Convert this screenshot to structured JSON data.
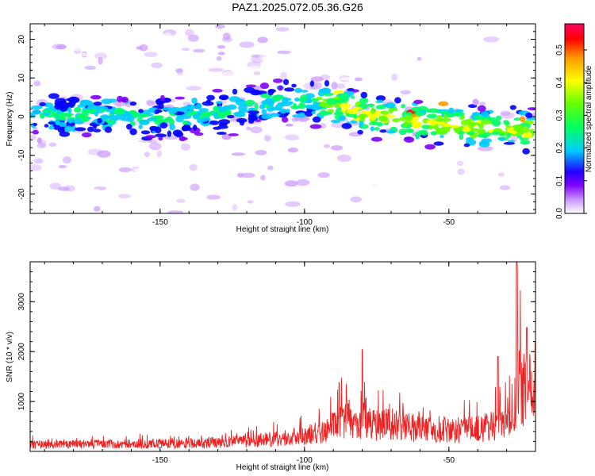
{
  "title": "PAZ1.2025.072.05.36.G26",
  "chart_data": [
    {
      "type": "heatmap",
      "xlabel": "Height of straight line (km)",
      "ylabel": "Frequency (Hz)",
      "xlim": [
        -195,
        -20
      ],
      "ylim": [
        -25,
        24
      ],
      "xticks": [
        -150,
        -100,
        -50
      ],
      "yticks": [
        -20,
        -10,
        0,
        10,
        20
      ],
      "ridge": {
        "description_points_x": [
          -195,
          -170,
          -150,
          -130,
          -110,
          -95,
          -80,
          -65,
          -50,
          -35,
          -20
        ],
        "description_points_y": [
          0,
          1,
          -1,
          1,
          4,
          4,
          1,
          -1,
          -2,
          -3,
          -4
        ]
      },
      "colorbar": {
        "label": "Normalized spectral amplitude",
        "ticks": [
          0.0,
          0.1,
          0.2,
          0.3,
          0.4,
          0.5
        ],
        "range": [
          0,
          0.58
        ],
        "colors": [
          "#ffffff",
          "#cc99ff",
          "#7f00ff",
          "#0000ff",
          "#00ccff",
          "#00ff66",
          "#66ff00",
          "#ffff00",
          "#ff9900",
          "#ff0000",
          "#ff0066"
        ]
      }
    },
    {
      "type": "line",
      "xlabel": "Height of straight line (km)",
      "ylabel": "SNR (10 * v/v)",
      "xlim": [
        -195,
        -20
      ],
      "ylim": [
        0,
        3800
      ],
      "xticks": [
        -150,
        -100,
        -50
      ],
      "yticks": [
        1000,
        2000,
        3000
      ],
      "color": "#ee2222",
      "profile_x": [
        -195,
        -180,
        -160,
        -140,
        -120,
        -105,
        -95,
        -88,
        -85,
        -82,
        -79,
        -75,
        -70,
        -65,
        -60,
        -55,
        -50,
        -45,
        -40,
        -35,
        -30,
        -27,
        -26,
        -25,
        -22,
        -20
      ],
      "profile_y": [
        150,
        160,
        170,
        180,
        220,
        320,
        420,
        650,
        760,
        520,
        780,
        600,
        620,
        560,
        520,
        500,
        480,
        470,
        500,
        560,
        700,
        1100,
        2200,
        1400,
        1350,
        1200
      ],
      "spikes": [
        {
          "x": -26.5,
          "y": 3800
        },
        {
          "x": -88,
          "y": 1380
        },
        {
          "x": -80,
          "y": 2040
        },
        {
          "x": -20,
          "y": 2200
        },
        {
          "x": -33,
          "y": 1900
        },
        {
          "x": -23,
          "y": 2480
        }
      ]
    }
  ]
}
